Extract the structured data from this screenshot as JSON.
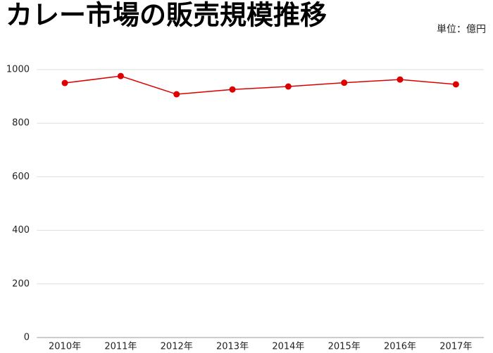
{
  "chart_data": {
    "type": "line",
    "title": "カレー市場の販売規模推移",
    "unit": "単位：億円",
    "categories": [
      "2010年",
      "2011年",
      "2012年",
      "2013年",
      "2014年",
      "2015年",
      "2016年",
      "2017年"
    ],
    "series": [
      {
        "name": "販売規模",
        "color": "#dd0000",
        "values": [
          950,
          976,
          908,
          926,
          937,
          951,
          963,
          945
        ]
      }
    ],
    "ylim": [
      0,
      1000
    ],
    "yticks": [
      0,
      200,
      400,
      600,
      800,
      1000
    ],
    "grid": true
  }
}
